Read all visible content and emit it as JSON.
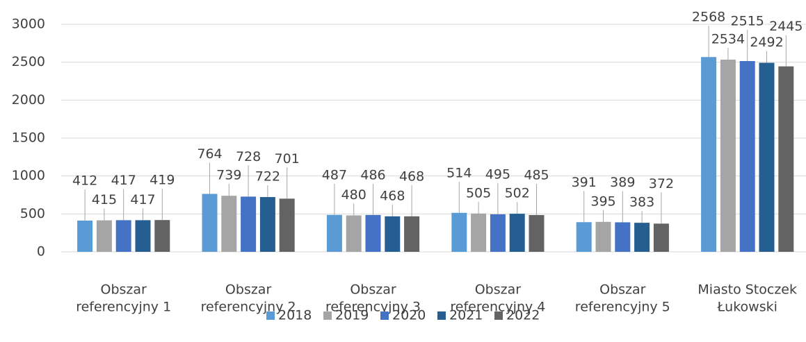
{
  "chart_data": {
    "type": "bar",
    "categories": [
      [
        "Obszar",
        "referencyjny 1"
      ],
      [
        "Obszar",
        "referencyjny 2"
      ],
      [
        "Obszar",
        "referencyjny 3"
      ],
      [
        "Obszar",
        "referencyjny 4"
      ],
      [
        "Obszar",
        "referencyjny 5"
      ],
      [
        "Miasto Stoczek",
        "Łukowski"
      ]
    ],
    "series": [
      {
        "name": "2018",
        "color": "#5b9bd5",
        "values": [
          412,
          764,
          487,
          514,
          391,
          2568
        ]
      },
      {
        "name": "2019",
        "color": "#a5a5a5",
        "values": [
          415,
          739,
          480,
          505,
          395,
          2534
        ]
      },
      {
        "name": "2020",
        "color": "#4472c4",
        "values": [
          417,
          728,
          486,
          495,
          389,
          2515
        ]
      },
      {
        "name": "2021",
        "color": "#255e91",
        "values": [
          417,
          722,
          468,
          502,
          383,
          2492
        ]
      },
      {
        "name": "2022",
        "color": "#636363",
        "values": [
          419,
          701,
          468,
          485,
          372,
          2445
        ]
      }
    ],
    "ylim": [
      0,
      3000
    ],
    "yticks": [
      0,
      500,
      1000,
      1500,
      2000,
      2500,
      3000
    ],
    "grid": true,
    "legend": "bottom"
  }
}
